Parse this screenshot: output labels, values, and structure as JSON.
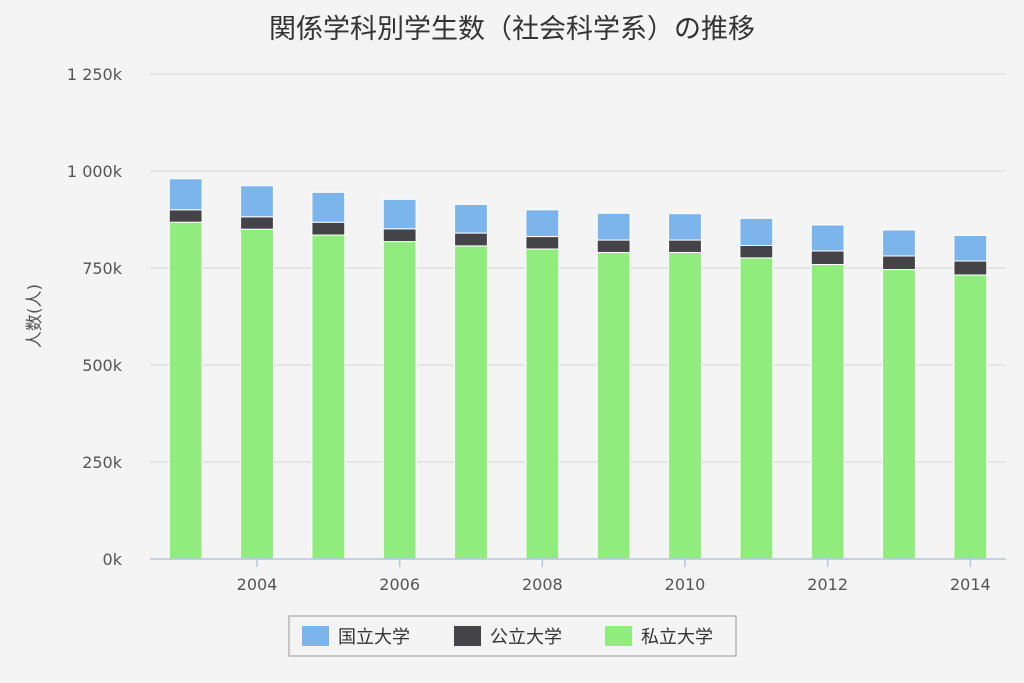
{
  "chart_data": {
    "type": "bar",
    "stacked": true,
    "title": "関係学科別学生数（社会科学系）の推移",
    "ylabel": "人数(人)",
    "xlabel": "",
    "ylim": [
      0,
      1250000
    ],
    "yticks": [
      0,
      250000,
      500000,
      750000,
      1000000,
      1250000
    ],
    "ytick_labels": [
      "0k",
      "250k",
      "500k",
      "750k",
      "1 000k",
      "1 250k"
    ],
    "categories": [
      2003,
      2004,
      2005,
      2006,
      2007,
      2008,
      2009,
      2010,
      2011,
      2012,
      2013,
      2014
    ],
    "xticks": [
      2004,
      2006,
      2008,
      2010,
      2012,
      2014
    ],
    "xtick_labels": [
      "2004",
      "2006",
      "2008",
      "2010",
      "2012",
      "2014"
    ],
    "grid": true,
    "legend_position": "bottom-center",
    "series": [
      {
        "name": "私立大学",
        "color": "#90ed7d",
        "values": [
          868000,
          850000,
          835000,
          818000,
          807000,
          799000,
          790000,
          790000,
          776000,
          759000,
          746000,
          732000
        ]
      },
      {
        "name": "公立大学",
        "color": "#434348",
        "values": [
          32000,
          32000,
          33000,
          33000,
          33000,
          32000,
          32000,
          32000,
          32000,
          35000,
          35000,
          36000
        ]
      },
      {
        "name": "国立大学",
        "color": "#7cb5ec",
        "values": [
          80000,
          80000,
          77000,
          76000,
          74000,
          69000,
          69000,
          68000,
          70000,
          67000,
          67000,
          66000
        ]
      }
    ],
    "legend_order": [
      "国立大学",
      "公立大学",
      "私立大学"
    ]
  }
}
